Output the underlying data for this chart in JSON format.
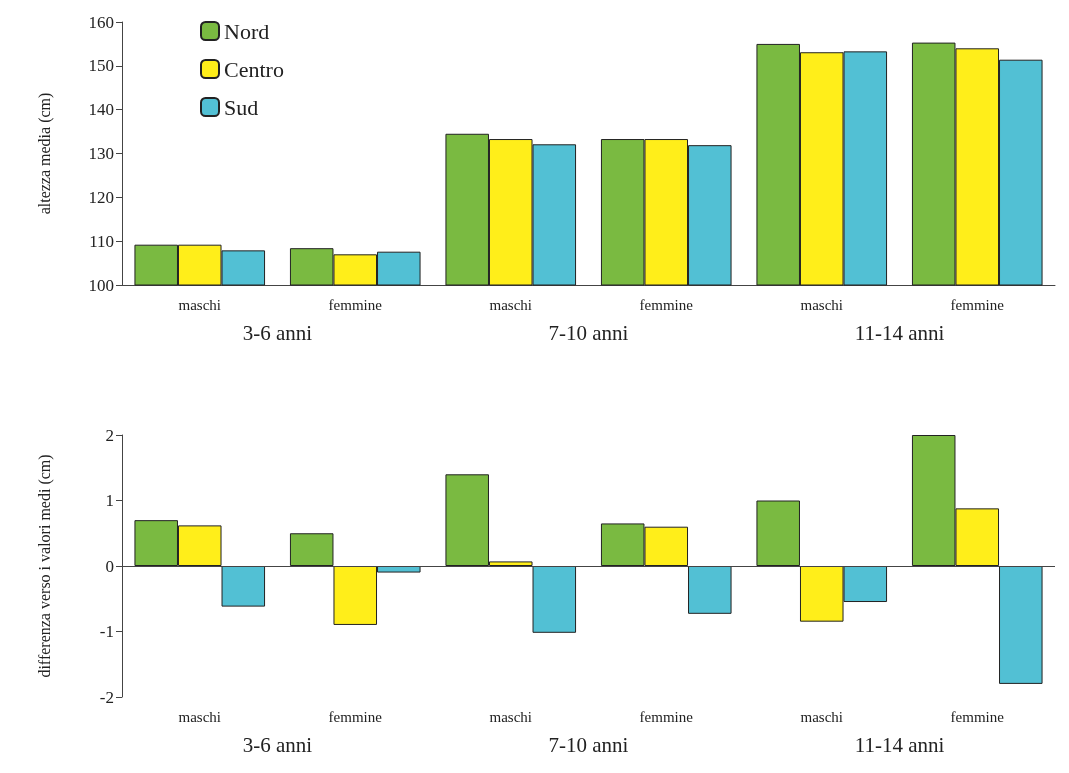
{
  "chart_data": [
    {
      "type": "bar",
      "ylabel": "altezza media (cm)",
      "categories": [
        "maschi",
        "femmine",
        "maschi",
        "femmine",
        "maschi",
        "femmine"
      ],
      "series": [
        {
          "name": "Nord",
          "color": "#7aba41",
          "values": [
            109.2,
            108.4,
            134.5,
            133.3,
            155.0,
            155.3
          ]
        },
        {
          "name": "Centro",
          "color": "#ffee1a",
          "values": [
            109.2,
            107.0,
            133.3,
            133.3,
            153.1,
            154.0
          ]
        },
        {
          "name": "Sud",
          "color": "#52c0d4",
          "values": [
            107.9,
            107.6,
            132.1,
            131.9,
            153.3,
            151.4
          ]
        }
      ],
      "ylim": [
        100,
        160
      ],
      "yticks": [
        100,
        110,
        120,
        130,
        140,
        150,
        160
      ],
      "grid": false,
      "legend": "top left",
      "annotations": [
        "3-6 anni",
        "7-10 anni",
        "11-14 anni"
      ]
    },
    {
      "type": "bar",
      "ylabel": "differenza verso i valori medi (cm)",
      "categories": [
        "maschi",
        "femmine",
        "maschi",
        "femmine",
        "maschi",
        "femmine"
      ],
      "series": [
        {
          "color": "#7aba41",
          "values": [
            0.7,
            0.5,
            1.4,
            0.65,
            1.0,
            2.0
          ]
        },
        {
          "color": "#ffee1a",
          "values": [
            0.62,
            -0.9,
            0.07,
            0.6,
            -0.85,
            0.88
          ]
        },
        {
          "color": "#52c0d4",
          "values": [
            -0.62,
            -0.1,
            -1.02,
            -0.73,
            -0.55,
            -1.8
          ]
        }
      ],
      "ylim": [
        -2,
        2
      ],
      "yticks": [
        -2,
        -1,
        0,
        1,
        2
      ],
      "grid": false,
      "legend": false,
      "ref_lines": [
        {
          "axis": "y",
          "value": 0
        }
      ],
      "annotations": [
        "3-6 anni",
        "7-10 anni",
        "11-14 anni"
      ]
    }
  ]
}
